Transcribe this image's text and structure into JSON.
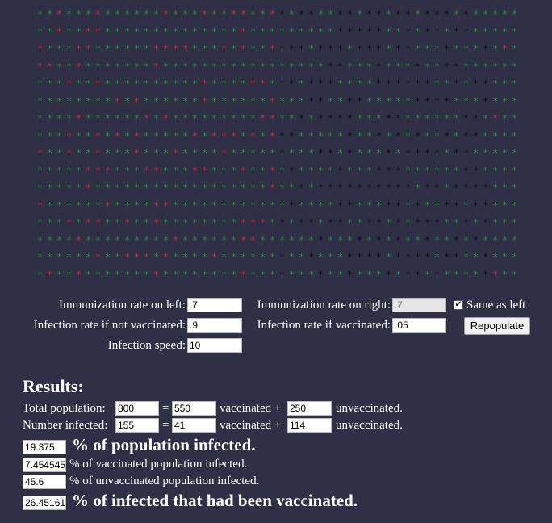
{
  "grid": {
    "symbol": "*",
    "colors": {
      "vaccinated": "#1f9a33",
      "unvaccinated": "#1f9a33",
      "infected": "#e8233d",
      "recovered": "#0a0a14"
    }
  },
  "controls": {
    "immunization_left_label": "Immunization rate on left:",
    "immunization_left_value": ".7",
    "immunization_right_label": "Immunization rate on right:",
    "immunization_right_value": ".7",
    "same_as_left_label": "Same as left",
    "same_as_left_checked": "✔",
    "infection_not_vacc_label": "Infection rate if not vaccinated:",
    "infection_not_vacc_value": ".9",
    "infection_vacc_label": "Infection rate if vaccinated:",
    "infection_vacc_value": ".05",
    "repopulate_label": "Repopulate",
    "infection_speed_label": "Infection speed:",
    "infection_speed_value": "10"
  },
  "results": {
    "heading": "Results:",
    "total_label": "Total population:",
    "total_value": "800",
    "equals": "=",
    "total_vacc": "550",
    "vaccinated_plus": "vaccinated +",
    "total_unvacc": "250",
    "unvaccinated": "unvaccinated.",
    "infected_label": "Number infected:",
    "infected_value": "155",
    "infected_vacc": "41",
    "infected_unvacc": "114",
    "pct_population_value": "19.375",
    "pct_population_label": "% of population infected.",
    "pct_vacc_value": "7.454545",
    "pct_vacc_label": "% of vaccinated population infected.",
    "pct_unvacc_value": "45.6",
    "pct_unvacc_label": "% of unvaccinated population infected.",
    "pct_infected_vacc_value": "26.45161",
    "pct_infected_vacc_label": "% of infected that had been vaccinated."
  }
}
